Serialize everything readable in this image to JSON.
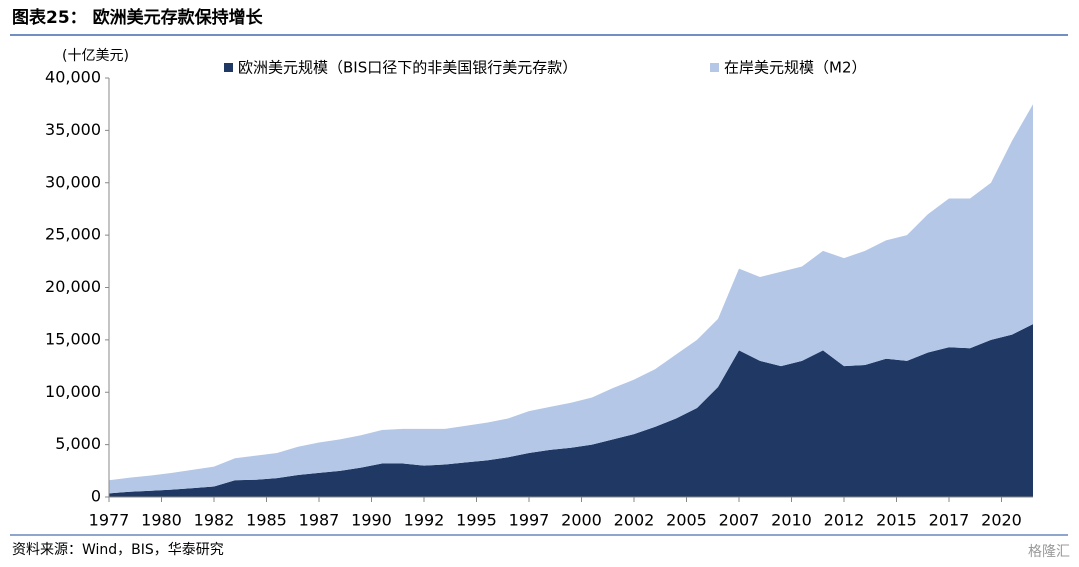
{
  "chart_data": {
    "type": "stacked_area",
    "title": "图表25： 欧洲美元存款保持增长",
    "y_label": "(十亿美元)",
    "source": "资料来源：Wind，BIS，华泰研究",
    "watermark": "格隆汇",
    "x": [
      1977,
      1978,
      1979,
      1980,
      1981,
      1982,
      1983,
      1984,
      1985,
      1986,
      1987,
      1988,
      1989,
      1990,
      1991,
      1992,
      1993,
      1994,
      1995,
      1996,
      1997,
      1998,
      1999,
      2000,
      2001,
      2002,
      2003,
      2004,
      2005,
      2006,
      2007,
      2008,
      2009,
      2010,
      2011,
      2012,
      2013,
      2014,
      2015,
      2016,
      2017,
      2018,
      2019,
      2020,
      2021
    ],
    "series": [
      {
        "name": "欧洲美元规模（BIS口径下的非美国银行美元存款）",
        "color": "#1f3864",
        "values": [
          350,
          500,
          600,
          700,
          850,
          1000,
          1600,
          1650,
          1800,
          2100,
          2300,
          2500,
          2800,
          3200,
          3200,
          3000,
          3100,
          3300,
          3500,
          3800,
          4200,
          4500,
          4700,
          5000,
          5500,
          6000,
          6700,
          7500,
          8500,
          10500,
          14000,
          13000,
          12500,
          13000,
          14000,
          12500,
          12600,
          13200,
          13000,
          13800,
          14300,
          14200,
          15000,
          15500,
          16500
        ]
      },
      {
        "name": "在岸美元规模（M2）",
        "color": "#b4c7e7",
        "values": [
          1250,
          1350,
          1450,
          1600,
          1750,
          1900,
          2100,
          2300,
          2400,
          2700,
          2900,
          3000,
          3100,
          3200,
          3300,
          3500,
          3400,
          3500,
          3600,
          3700,
          4000,
          4100,
          4300,
          4500,
          4900,
          5200,
          5500,
          6100,
          6500,
          6500,
          7800,
          8000,
          9000,
          9000,
          9500,
          10300,
          10900,
          11300,
          12000,
          13200,
          14200,
          14300,
          15000,
          18500,
          21000
        ]
      }
    ],
    "xlim": [
      1977,
      2021
    ],
    "xticks": [
      1977,
      {
        "value": 1979.5,
        "label": "1980"
      },
      1982,
      {
        "value": 1984.5,
        "label": "1985"
      },
      1987,
      {
        "value": 1989.5,
        "label": "1990"
      },
      1992,
      {
        "value": 1994.5,
        "label": "1995"
      },
      1997,
      {
        "value": 1999.5,
        "label": "2000"
      },
      2002,
      {
        "value": 2004.5,
        "label": "2005"
      },
      2007,
      {
        "value": 2009.5,
        "label": "2010"
      },
      2012,
      {
        "value": 2014.5,
        "label": "2015"
      },
      2017,
      {
        "value": 2019.5,
        "label": "2020"
      }
    ],
    "ylim": [
      0,
      40000
    ],
    "yticks": [
      0,
      {
        "value": 5000,
        "label": "5,000"
      },
      {
        "value": 10000,
        "label": "10,000"
      },
      {
        "value": 15000,
        "label": "15,000"
      },
      {
        "value": 20000,
        "label": "20,000"
      },
      {
        "value": 25000,
        "label": "25,000"
      },
      {
        "value": 30000,
        "label": "30,000"
      },
      {
        "value": 35000,
        "label": "35,000"
      },
      {
        "value": 40000,
        "label": "40,000"
      }
    ],
    "grid": false
  }
}
